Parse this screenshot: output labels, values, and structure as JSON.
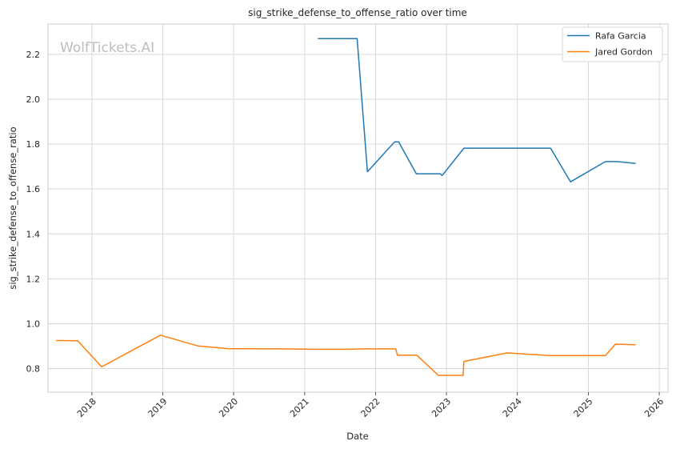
{
  "chart_data": {
    "type": "line",
    "title": "sig_strike_defense_to_offense_ratio over time",
    "xlabel": "Date",
    "ylabel": "sig_strike_defense_to_offense_ratio",
    "watermark": "WolfTickets.AI",
    "x_ticks": [
      "2018",
      "2019",
      "2020",
      "2021",
      "2022",
      "2023",
      "2024",
      "2025",
      "2026"
    ],
    "y_ticks": [
      "0.8",
      "1.0",
      "1.2",
      "1.4",
      "1.6",
      "1.8",
      "2.0",
      "2.2"
    ],
    "xlim": [
      "2017-05-20",
      "2026-02-15"
    ],
    "ylim": [
      0.695,
      2.335
    ],
    "grid": true,
    "legend": "top-right",
    "series": [
      {
        "name": "Rafa Garcia",
        "color": "#1f77b4",
        "points": [
          [
            "2021-03-10",
            2.27
          ],
          [
            "2021-09-28",
            2.27
          ],
          [
            "2021-11-20",
            1.677
          ],
          [
            "2022-04-09",
            1.81
          ],
          [
            "2022-04-30",
            1.81
          ],
          [
            "2022-07-30",
            1.668
          ],
          [
            "2022-11-30",
            1.668
          ],
          [
            "2022-12-10",
            1.66
          ],
          [
            "2023-04-01",
            1.782
          ],
          [
            "2024-06-20",
            1.782
          ],
          [
            "2024-10-01",
            1.632
          ],
          [
            "2025-03-30",
            1.722
          ],
          [
            "2025-05-30",
            1.722
          ],
          [
            "2025-09-01",
            1.714
          ]
        ]
      },
      {
        "name": "Jared Gordon",
        "color": "#ff7f0e",
        "points": [
          [
            "2017-07-01",
            0.925
          ],
          [
            "2017-10-20",
            0.924
          ],
          [
            "2018-02-20",
            0.808
          ],
          [
            "2018-12-20",
            0.949
          ],
          [
            "2019-07-01",
            0.901
          ],
          [
            "2019-11-30",
            0.889
          ],
          [
            "2020-08-30",
            0.888
          ],
          [
            "2021-03-01",
            0.886
          ],
          [
            "2021-08-30",
            0.886
          ],
          [
            "2021-10-20",
            0.888
          ],
          [
            "2022-04-15",
            0.888
          ],
          [
            "2022-04-23",
            0.86
          ],
          [
            "2022-08-01",
            0.86
          ],
          [
            "2022-11-20",
            0.77
          ],
          [
            "2023-03-28",
            0.77
          ],
          [
            "2023-04-01",
            0.832
          ],
          [
            "2023-11-10",
            0.87
          ],
          [
            "2024-06-15",
            0.858
          ],
          [
            "2025-03-30",
            0.858
          ],
          [
            "2025-05-20",
            0.909
          ],
          [
            "2025-09-01",
            0.906
          ]
        ]
      }
    ]
  }
}
